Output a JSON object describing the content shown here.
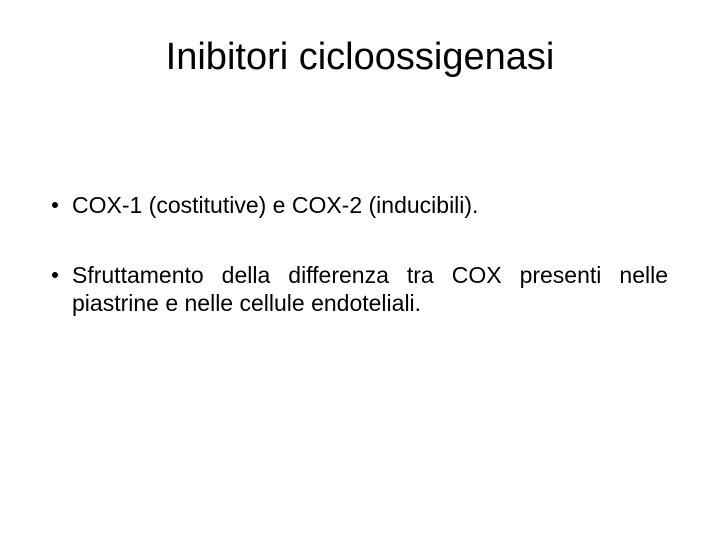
{
  "title_color": "#000000",
  "text_color": "#000000",
  "background_color": "#ffffff",
  "title_fontsize": 38,
  "body_fontsize": 23,
  "title": "Inibitori cicloossigenasi",
  "bullets": [
    "COX-1 (costitutive) e COX-2 (inducibili).",
    "Sfruttamento della differenza tra COX presenti nelle piastrine e nelle cellule endoteliali."
  ]
}
